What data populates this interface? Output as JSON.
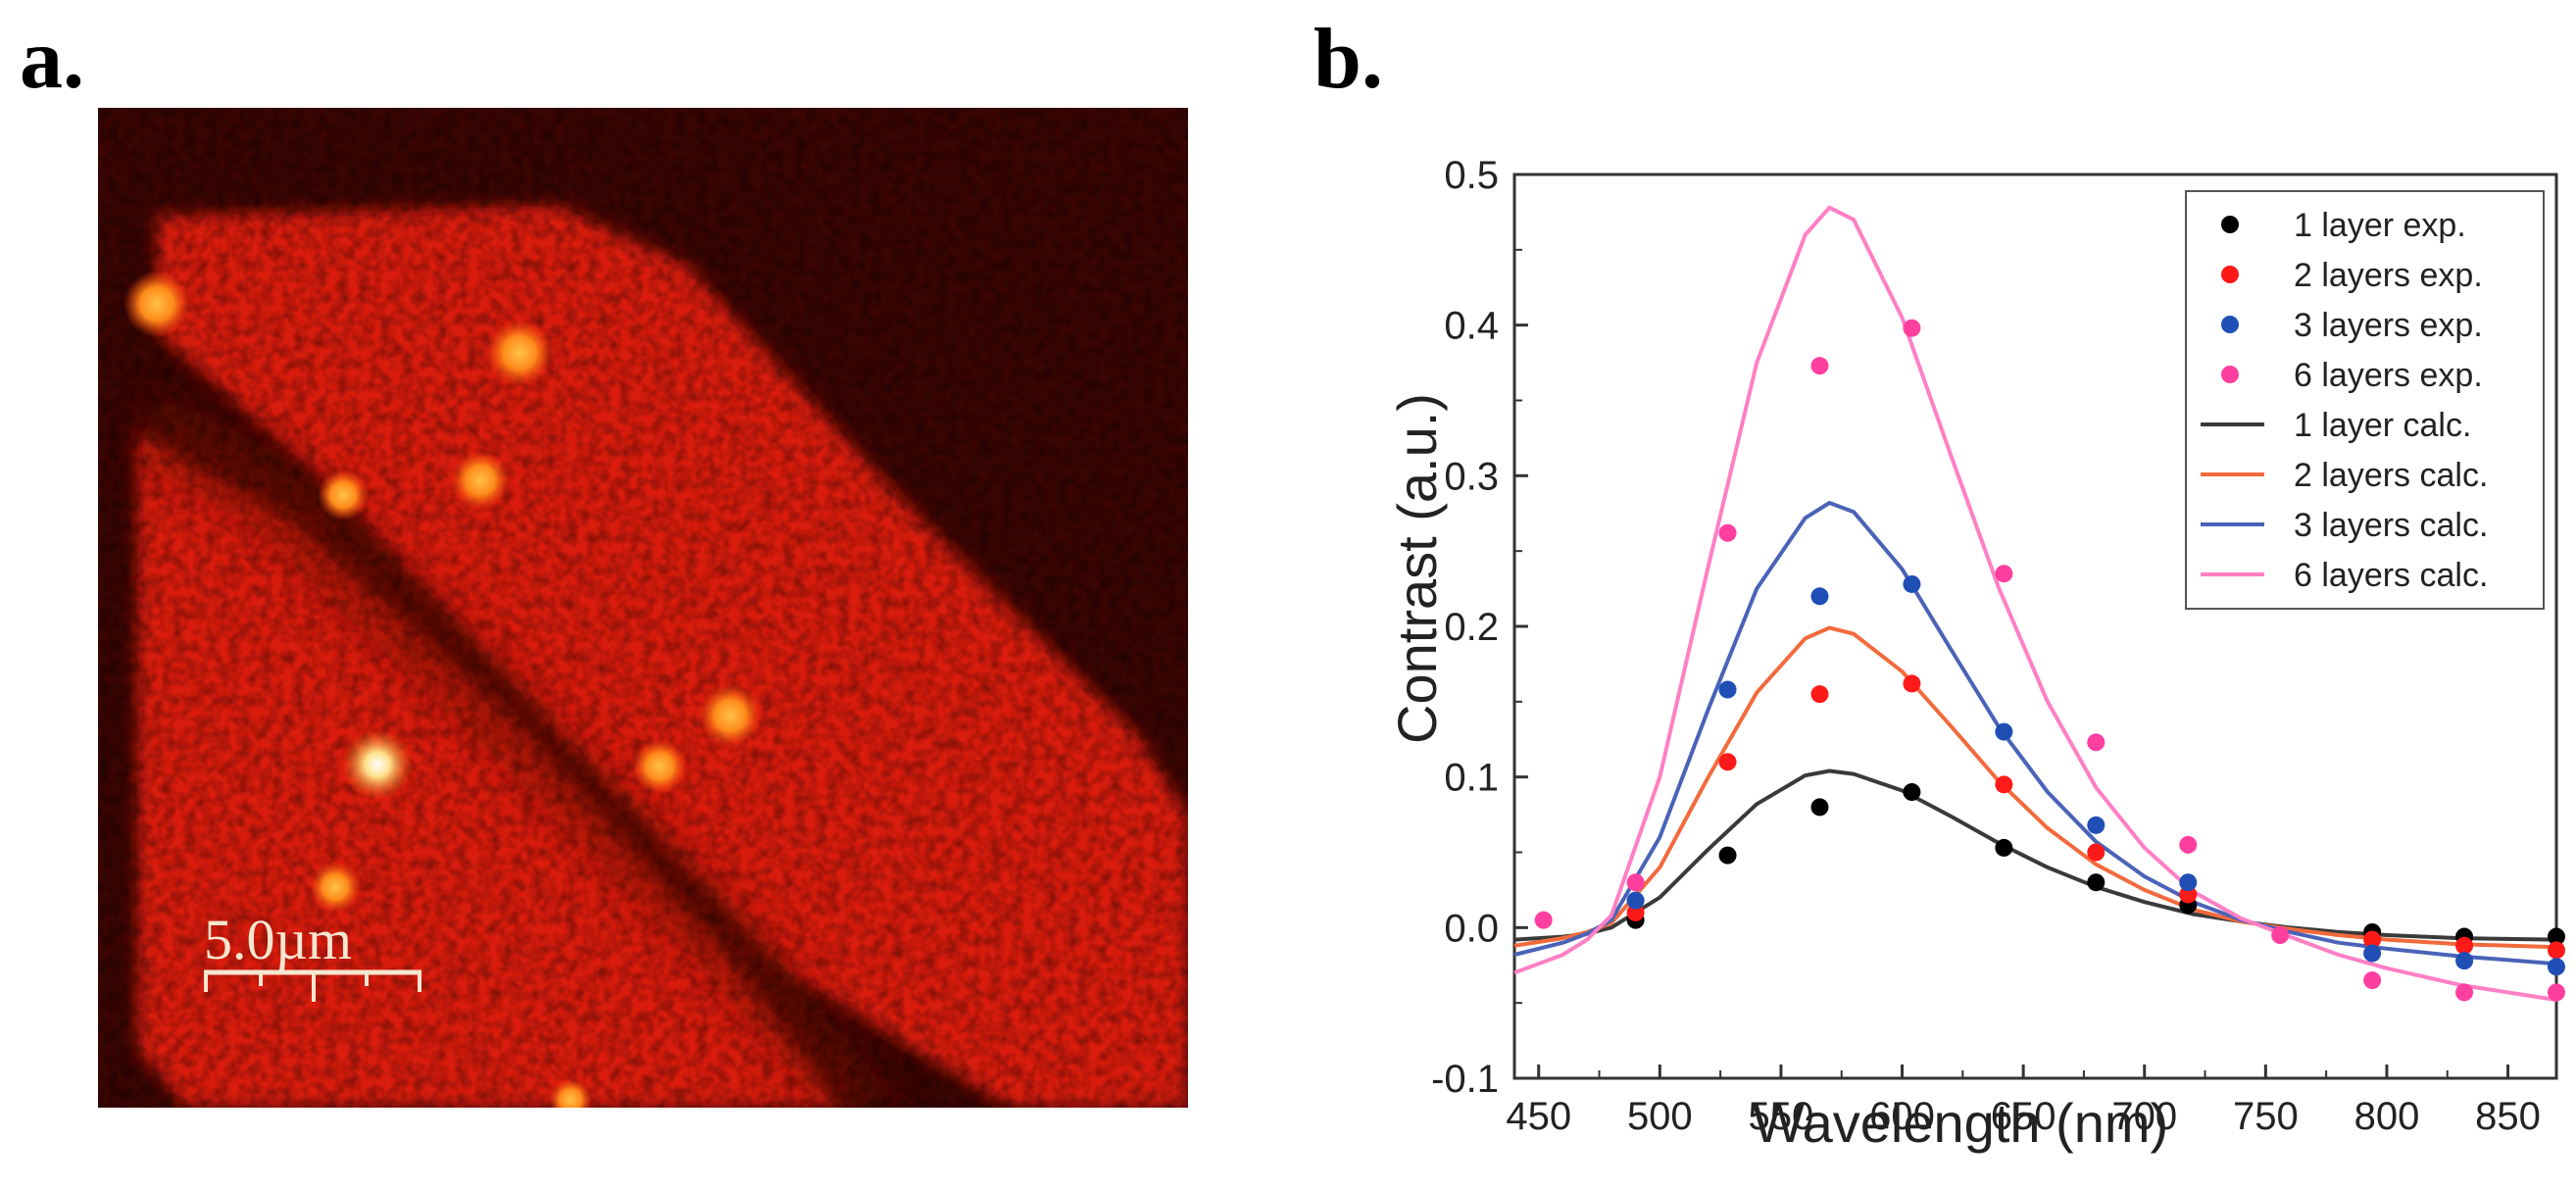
{
  "panels": {
    "a_label": "a.",
    "b_label": "b."
  },
  "micrograph": {
    "scale_bar_label": "5.0µm",
    "colors": {
      "background": "#3a0503",
      "flake": "#e0200e",
      "flake_edge": "#c41a0c",
      "highlight": "#ffe08a",
      "scale_text": "#f5e6cf"
    }
  },
  "chart_data": {
    "type": "scatter",
    "title": "",
    "xlabel": "Wavelength (nm)",
    "ylabel": "Contrast  (a.u.)",
    "xlim": [
      440,
      870
    ],
    "ylim": [
      -0.1,
      0.5
    ],
    "x_ticks": [
      450,
      500,
      550,
      600,
      650,
      700,
      750,
      800,
      850
    ],
    "y_ticks": [
      -0.1,
      0.0,
      0.1,
      0.2,
      0.3,
      0.4,
      0.5
    ],
    "y_tick_labels": [
      "-0.1",
      "0.0",
      "0.1",
      "0.2",
      "0.3",
      "0.4",
      "0.5"
    ],
    "legend_position": "top-right",
    "series": [
      {
        "name": "1 layer exp.",
        "kind": "points",
        "color": "#000000",
        "x": [
          490,
          528,
          566,
          604,
          642,
          680,
          718,
          794,
          832,
          870
        ],
        "y": [
          0.005,
          0.048,
          0.08,
          0.09,
          0.053,
          0.03,
          0.015,
          -0.003,
          -0.006,
          -0.006
        ]
      },
      {
        "name": "2 layers exp.",
        "kind": "points",
        "color": "#ff1a1a",
        "x": [
          490,
          528,
          566,
          604,
          642,
          680,
          718,
          794,
          832,
          870
        ],
        "y": [
          0.01,
          0.11,
          0.155,
          0.162,
          0.095,
          0.05,
          0.022,
          -0.008,
          -0.012,
          -0.015
        ]
      },
      {
        "name": "3 layers exp.",
        "kind": "points",
        "color": "#1f4fb5",
        "x": [
          490,
          528,
          566,
          604,
          642,
          680,
          718,
          794,
          832,
          870
        ],
        "y": [
          0.018,
          0.158,
          0.22,
          0.228,
          0.13,
          0.068,
          0.03,
          -0.017,
          -0.022,
          -0.026
        ]
      },
      {
        "name": "6 layers exp.",
        "kind": "points",
        "color": "#ff3fa0",
        "x": [
          452,
          490,
          528,
          566,
          604,
          642,
          680,
          718,
          756,
          794,
          832,
          870
        ],
        "y": [
          0.005,
          0.03,
          0.262,
          0.373,
          0.398,
          0.235,
          0.123,
          0.055,
          -0.005,
          -0.035,
          -0.043,
          -0.043
        ]
      },
      {
        "name": "1 layer calc.",
        "kind": "line",
        "color": "#3a3a3a",
        "x": [
          440,
          460,
          470,
          480,
          500,
          520,
          540,
          560,
          570,
          580,
          600,
          620,
          640,
          660,
          680,
          700,
          720,
          740,
          760,
          780,
          800,
          830,
          870
        ],
        "y": [
          -0.008,
          -0.006,
          -0.004,
          0.0,
          0.02,
          0.052,
          0.082,
          0.101,
          0.104,
          0.102,
          0.091,
          0.074,
          0.056,
          0.04,
          0.027,
          0.017,
          0.009,
          0.004,
          0.0,
          -0.003,
          -0.005,
          -0.007,
          -0.008
        ]
      },
      {
        "name": "2 layers calc.",
        "kind": "line",
        "color": "#f26a3c",
        "x": [
          440,
          460,
          470,
          480,
          500,
          520,
          540,
          560,
          570,
          580,
          600,
          620,
          640,
          660,
          680,
          700,
          720,
          740,
          760,
          780,
          800,
          830,
          870
        ],
        "y": [
          -0.012,
          -0.007,
          -0.003,
          0.003,
          0.04,
          0.1,
          0.156,
          0.192,
          0.199,
          0.195,
          0.17,
          0.134,
          0.097,
          0.066,
          0.042,
          0.025,
          0.012,
          0.004,
          -0.001,
          -0.005,
          -0.008,
          -0.011,
          -0.013
        ]
      },
      {
        "name": "3 layers calc.",
        "kind": "line",
        "color": "#4a63b8",
        "x": [
          440,
          460,
          470,
          480,
          500,
          520,
          540,
          560,
          570,
          580,
          600,
          620,
          640,
          660,
          680,
          700,
          720,
          740,
          760,
          780,
          800,
          830,
          870
        ],
        "y": [
          -0.018,
          -0.01,
          -0.004,
          0.005,
          0.06,
          0.145,
          0.225,
          0.272,
          0.282,
          0.276,
          0.238,
          0.185,
          0.133,
          0.09,
          0.057,
          0.034,
          0.017,
          0.005,
          -0.003,
          -0.01,
          -0.014,
          -0.019,
          -0.024
        ]
      },
      {
        "name": "6 layers calc.",
        "kind": "line",
        "color": "#ff7fc4",
        "x": [
          440,
          460,
          470,
          480,
          500,
          520,
          540,
          560,
          570,
          580,
          600,
          620,
          640,
          660,
          680,
          700,
          720,
          740,
          760,
          780,
          800,
          830,
          870
        ],
        "y": [
          -0.03,
          -0.018,
          -0.008,
          0.008,
          0.1,
          0.24,
          0.375,
          0.46,
          0.478,
          0.47,
          0.405,
          0.314,
          0.225,
          0.15,
          0.093,
          0.053,
          0.024,
          0.006,
          -0.006,
          -0.018,
          -0.027,
          -0.038,
          -0.048
        ]
      }
    ]
  }
}
